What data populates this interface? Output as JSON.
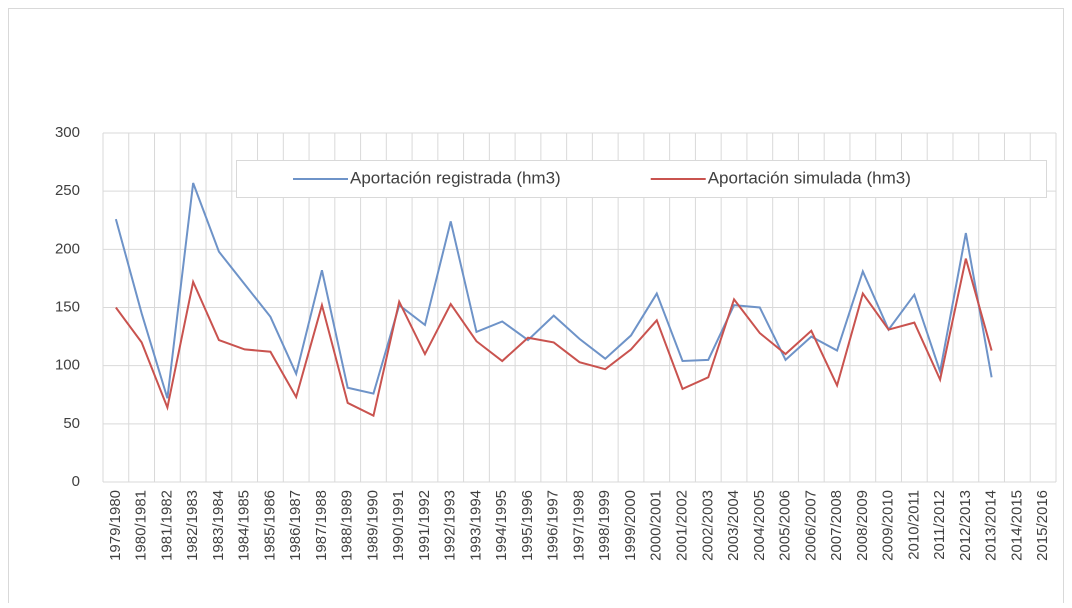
{
  "chart_data": {
    "type": "line",
    "categories": [
      "1979/1980",
      "1980/1981",
      "1981/1982",
      "1982/1983",
      "1983/1984",
      "1984/1985",
      "1985/1986",
      "1986/1987",
      "1987/1988",
      "1988/1989",
      "1989/1990",
      "1990/1991",
      "1991/1992",
      "1992/1993",
      "1993/1994",
      "1994/1995",
      "1995/1996",
      "1996/1997",
      "1997/1998",
      "1998/1999",
      "1999/2000",
      "2000/2001",
      "2001/2002",
      "2002/2003",
      "2003/2004",
      "2004/2005",
      "2005/2006",
      "2006/2007",
      "2007/2008",
      "2008/2009",
      "2009/2010",
      "2010/2011",
      "2011/2012",
      "2012/2013",
      "2013/2014",
      "2014/2015",
      "2015/2016"
    ],
    "series": [
      {
        "name": "Aportación registrada (hm3)",
        "color": "#6e93c8",
        "values": [
          226,
          145,
          72,
          257,
          198,
          170,
          142,
          93,
          182,
          81,
          76,
          152,
          135,
          224,
          129,
          138,
          122,
          143,
          123,
          106,
          126,
          162,
          104,
          105,
          152,
          150,
          105,
          125,
          113,
          181,
          131,
          161,
          95,
          214,
          90,
          null,
          null
        ]
      },
      {
        "name": "Aportación simulada (hm3)",
        "color": "#c9534f",
        "values": [
          150,
          120,
          64,
          172,
          122,
          114,
          112,
          73,
          152,
          68,
          57,
          155,
          110,
          153,
          121,
          104,
          124,
          120,
          103,
          97,
          114,
          139,
          80,
          90,
          157,
          128,
          110,
          130,
          83,
          162,
          131,
          137,
          88,
          192,
          113,
          null,
          null
        ]
      }
    ],
    "ylim": [
      0,
      300
    ],
    "yticks": [
      0,
      50,
      100,
      150,
      200,
      250,
      300
    ],
    "grid": true,
    "legend": "top"
  }
}
